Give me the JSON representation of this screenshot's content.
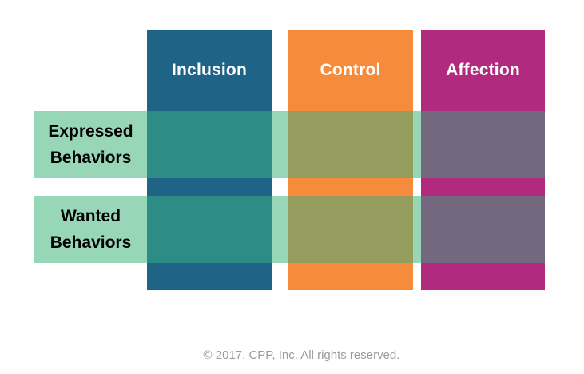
{
  "matrix": {
    "columns": [
      {
        "label": "Inclusion",
        "color": "#1F6387",
        "overlap_color": "#2E8C86",
        "header_text_color": "#FFFFFF"
      },
      {
        "label": "Control",
        "color": "#F68B3C",
        "overlap_color": "#949D5E",
        "header_text_color": "#FFFFFF"
      },
      {
        "label": "Affection",
        "color": "#B02A7E",
        "overlap_color": "#73687E",
        "header_text_color": "#FFFFFF"
      }
    ],
    "rows": [
      {
        "label": "Expressed Behaviors",
        "line1": "Expressed",
        "line2": "Behaviors",
        "band_color": "#98D6B8",
        "label_text_color": "#000000"
      },
      {
        "label": "Wanted Behaviors",
        "line1": "Wanted",
        "line2": "Behaviors",
        "band_color": "#98D6B8",
        "label_text_color": "#000000"
      }
    ]
  },
  "footer": {
    "copyright": "© 2017, CPP, Inc. All rights reserved.",
    "text_color": "#9B9B9B"
  },
  "page": {
    "background_color": "#FFFFFF"
  }
}
